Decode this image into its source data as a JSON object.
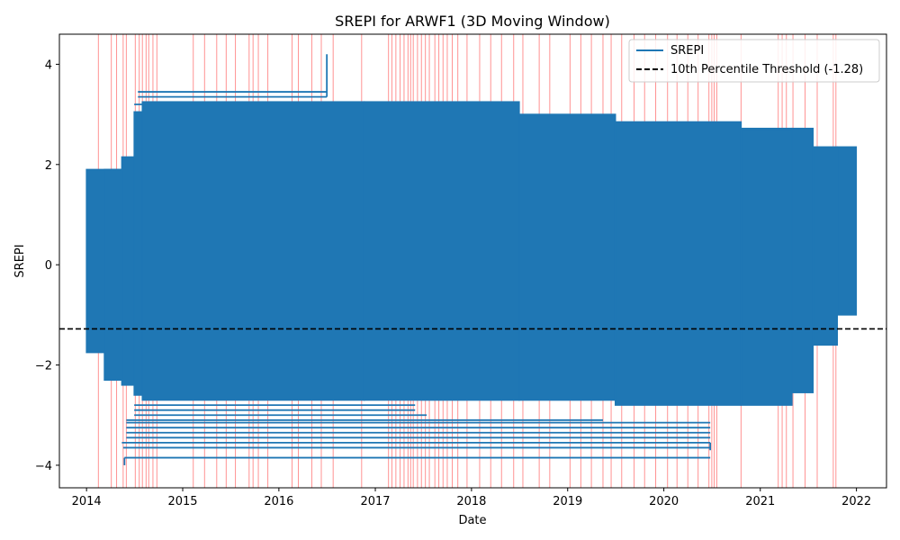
{
  "chart_data": {
    "type": "line",
    "title": "SREPI for ARWF1 (3D Moving Window)",
    "xlabel": "Date",
    "ylabel": "SREPI",
    "xlim": [
      "2013-09-20",
      "2022-04-25"
    ],
    "ylim": [
      -4.45,
      4.6
    ],
    "x_ticks": [
      "2014",
      "2015",
      "2016",
      "2017",
      "2018",
      "2019",
      "2020",
      "2021",
      "2022"
    ],
    "y_ticks": [
      -4,
      -2,
      0,
      2,
      4
    ],
    "grid": false,
    "legend_position": "upper right",
    "threshold": {
      "name": "10th Percentile Threshold (-1.28)",
      "value": -1.28,
      "color": "#000000",
      "style": "dashed"
    },
    "series": [
      {
        "name": "SREPI",
        "color": "#1f77b4",
        "segments": [
          {
            "x_start": "2014-01-01",
            "x_end": "2014-05-15",
            "y_min": -1.75,
            "y_max": 1.9
          },
          {
            "x_start": "2014-03-10",
            "x_end": "2014-05-15",
            "y_min": -2.3,
            "y_max": 1.9
          },
          {
            "x_start": "2014-05-15",
            "x_end": "2014-07-01",
            "y_min": -2.4,
            "y_max": 2.15
          },
          {
            "x_start": "2014-07-01",
            "x_end": "2014-08-01",
            "y_min": -2.6,
            "y_max": 3.05
          },
          {
            "x_start": "2014-08-01",
            "x_end": "2016-11-20",
            "y_min": -2.7,
            "y_max": 3.25
          },
          {
            "x_start": "2016-11-20",
            "x_end": "2018-07-01",
            "y_min": -2.7,
            "y_max": 3.25
          },
          {
            "x_start": "2018-07-01",
            "x_end": "2019-07-01",
            "y_min": -2.7,
            "y_max": 3.0
          },
          {
            "x_start": "2019-07-01",
            "x_end": "2020-10-20",
            "y_min": -2.8,
            "y_max": 2.85
          },
          {
            "x_start": "2020-10-20",
            "x_end": "2021-05-01",
            "y_min": -2.8,
            "y_max": 2.72
          },
          {
            "x_start": "2021-05-01",
            "x_end": "2021-07-20",
            "y_min": -2.55,
            "y_max": 2.72
          },
          {
            "x_start": "2021-07-20",
            "x_end": "2021-10-20",
            "y_min": -1.6,
            "y_max": 2.35
          },
          {
            "x_start": "2021-10-20",
            "x_end": "2021-12-31",
            "y_min": -1.0,
            "y_max": 2.35
          }
        ],
        "horizontal_lines": [
          {
            "x_start": "2014-07-15",
            "x_end": "2016-07-01",
            "y": 3.35
          },
          {
            "x_start": "2014-07-15",
            "x_end": "2016-07-01",
            "y": 3.45
          },
          {
            "x_start": "2014-07-01",
            "x_end": "2018-07-01",
            "y": 3.2
          },
          {
            "x_start": "2018-07-01",
            "x_end": "2019-07-01",
            "y": 2.98
          },
          {
            "x_start": "2019-07-01",
            "x_end": "2020-10-20",
            "y": 2.82
          },
          {
            "x_start": "2020-10-20",
            "x_end": "2021-05-01",
            "y": 2.7
          },
          {
            "x_start": "2014-07-01",
            "x_end": "2017-06-01",
            "y": -2.9
          },
          {
            "x_start": "2014-07-01",
            "x_end": "2017-06-01",
            "y": -2.8
          },
          {
            "x_start": "2014-07-01",
            "x_end": "2017-07-15",
            "y": -3.0
          },
          {
            "x_start": "2014-06-01",
            "x_end": "2019-05-15",
            "y": -3.1
          },
          {
            "x_start": "2014-06-01",
            "x_end": "2020-06-25",
            "y": -3.15
          },
          {
            "x_start": "2014-06-01",
            "x_end": "2020-06-25",
            "y": -3.25
          },
          {
            "x_start": "2014-06-01",
            "x_end": "2020-06-25",
            "y": -3.35
          },
          {
            "x_start": "2014-06-01",
            "x_end": "2020-06-25",
            "y": -3.45
          },
          {
            "x_start": "2014-05-15",
            "x_end": "2020-06-25",
            "y": -3.55
          },
          {
            "x_start": "2014-05-20",
            "x_end": "2020-06-25",
            "y": -3.65
          },
          {
            "x_start": "2014-05-25",
            "x_end": "2020-06-25",
            "y": -3.85
          }
        ],
        "extremes": [
          {
            "x": "2016-07-01",
            "y": 4.2
          },
          {
            "x": "2014-05-25",
            "y": -4.0
          }
        ]
      }
    ],
    "event_markers": {
      "color": "#ff8080",
      "dates": [
        "2014-02-15",
        "2014-04-05",
        "2014-04-25",
        "2014-05-20",
        "2014-06-01",
        "2014-07-05",
        "2014-07-20",
        "2014-08-01",
        "2014-08-15",
        "2014-08-25",
        "2014-09-10",
        "2014-09-25",
        "2015-02-10",
        "2015-03-25",
        "2015-05-10",
        "2015-06-15",
        "2015-07-20",
        "2015-09-10",
        "2015-09-25",
        "2015-10-15",
        "2015-11-20",
        "2016-02-20",
        "2016-03-15",
        "2016-05-05",
        "2016-06-10",
        "2016-07-25",
        "2016-11-10",
        "2017-02-20",
        "2017-03-05",
        "2017-03-20",
        "2017-04-05",
        "2017-04-20",
        "2017-05-05",
        "2017-05-15",
        "2017-05-25",
        "2017-06-10",
        "2017-06-25",
        "2017-07-10",
        "2017-07-25",
        "2017-08-15",
        "2017-08-30",
        "2017-09-15",
        "2017-10-01",
        "2017-10-20",
        "2017-11-10",
        "2017-12-15",
        "2018-02-01",
        "2018-03-15",
        "2018-04-25",
        "2018-06-10",
        "2018-07-15",
        "2018-09-15",
        "2018-10-25",
        "2019-01-10",
        "2019-02-20",
        "2019-04-01",
        "2019-05-15",
        "2019-06-15",
        "2019-07-25",
        "2019-09-10",
        "2019-10-20",
        "2019-12-01",
        "2020-01-15",
        "2020-02-20",
        "2020-04-01",
        "2020-05-10",
        "2020-06-20",
        "2020-07-01",
        "2020-07-10",
        "2020-07-20",
        "2020-10-20",
        "2021-03-10",
        "2021-03-25",
        "2021-04-10",
        "2021-05-05",
        "2021-06-20",
        "2021-08-05",
        "2021-10-05",
        "2021-10-15"
      ]
    }
  }
}
